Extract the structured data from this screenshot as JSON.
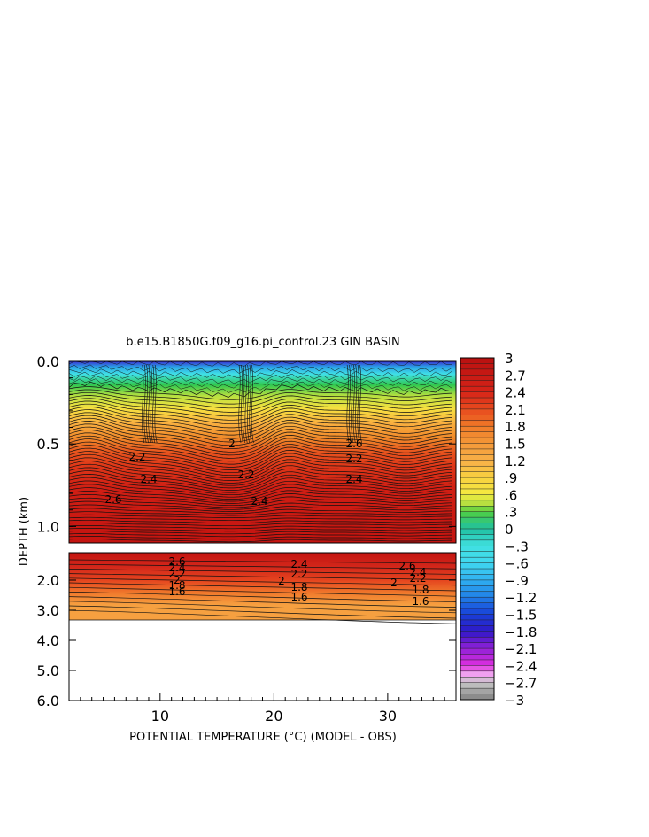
{
  "chart_data": {
    "type": "heatmap",
    "title": "b.e15.B1850G.f09_g16.pi_control.23 GIN BASIN",
    "xlabel": "POTENTIAL TEMPERATURE (°C) (MODEL - OBS)",
    "ylabel": "DEPTH (km)",
    "x_ticks": [
      "10",
      "20",
      "30"
    ],
    "x_range": [
      2,
      36
    ],
    "upper_panel": {
      "depth_range_km": [
        0.0,
        1.1
      ],
      "y_ticks": [
        "0.0",
        "0.5",
        "1.0"
      ]
    },
    "lower_panel": {
      "depth_range_km": [
        1.1,
        6.0
      ],
      "y_ticks": [
        "2.0",
        "3.0",
        "4.0",
        "5.0",
        "6.0"
      ],
      "no_data_below_km": 3.3
    },
    "colorbar": {
      "range": [
        -3,
        3
      ],
      "labels": [
        "3",
        "2.7",
        "2.4",
        "2.1",
        "1.8",
        "1.5",
        "1.2",
        ".9",
        ".6",
        ".3",
        "0",
        "-.3",
        "-.6",
        "-.9",
        "-1.2",
        "-1.5",
        "-1.8",
        "-2.1",
        "-2.4",
        "-2.7",
        "-3"
      ]
    },
    "contour_labels_upper": [
      "2",
      "2.2",
      "2.4",
      "2.6",
      "2.2",
      "2.4",
      "2.6",
      "2.2",
      "2.4",
      "2.6"
    ],
    "contour_labels_lower": [
      "2.6",
      "2.4",
      "2.2",
      "2",
      "1.8",
      "1.6",
      "2.4",
      "2.2",
      "2",
      "1.8",
      "1.6",
      "2.6",
      "2.4",
      "2.2",
      "2",
      "1.8",
      "1.6"
    ]
  }
}
